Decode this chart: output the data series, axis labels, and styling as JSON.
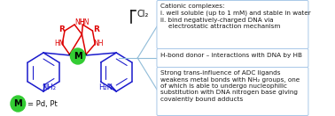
{
  "background_color": "#ffffff",
  "border_color": "#a8c8e8",
  "text_color": "#1a1a1a",
  "red_color": "#dd0000",
  "blue_color": "#1a1acc",
  "green_color": "#33cc33",
  "black_color": "#111111",
  "line_color": "#90bcd8",
  "box1_text": "Cationic complexes:\ni. well soluble (up to 1 mM) and stable in water\nii. bind negatively-charged DNA via\n    electrostatic attraction mechanism",
  "box2_text": "H-bond donor – interactions with DNA by HB",
  "box3_text": "Strong trans-influence of ADC ligands\nweakens metal bonds with NH₂ groups, one\nof which is able to undergo nucleophilic\nsubstitution with DNA nitrogen base giving\ncovalently bound adducts",
  "metal_label": "M",
  "legend_text": "= Pd, Pt",
  "font_size_box": 5.2,
  "font_size_label": 6.0,
  "font_size_legend": 6.0
}
